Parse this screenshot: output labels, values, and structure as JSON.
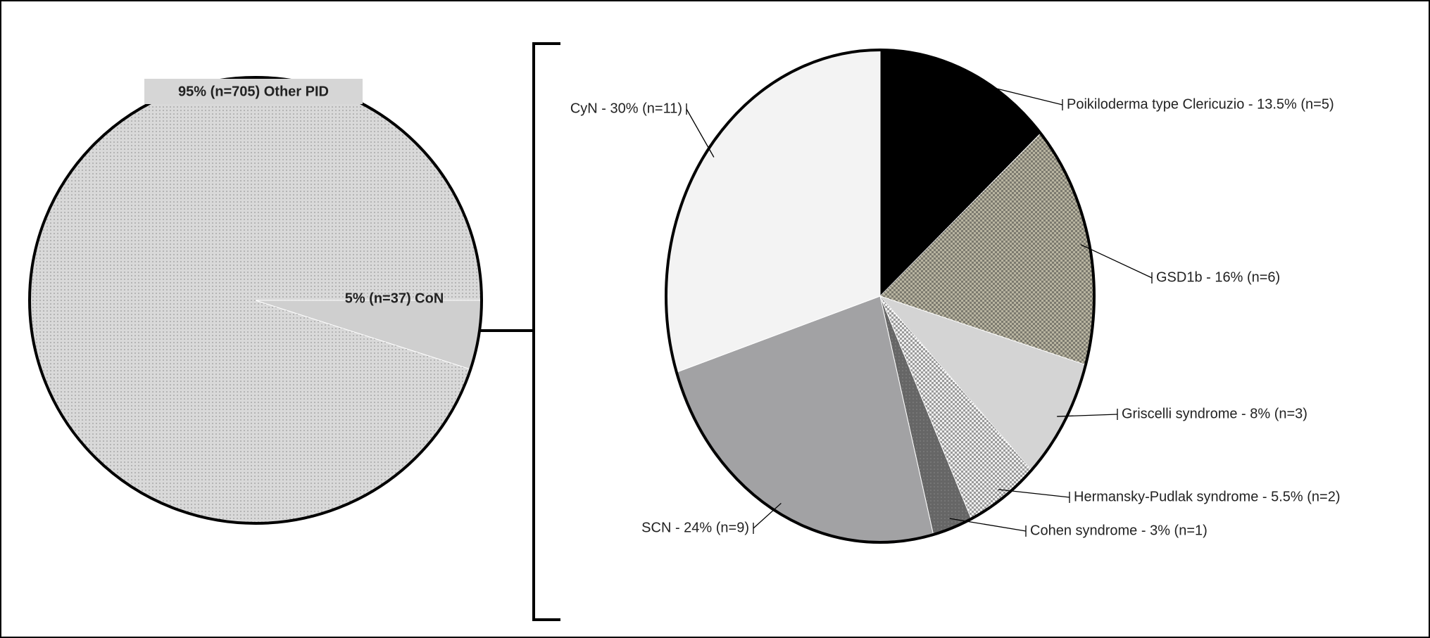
{
  "chart_data": [
    {
      "type": "pie",
      "labels": [
        "95% (n=705) Other PID",
        "5% (n=37) CoN"
      ],
      "values": [
        95,
        5
      ],
      "colors": [
        "#d9d9d9",
        "#cfcfcf"
      ]
    },
    {
      "type": "pie",
      "labels": [
        "Poikiloderma type Clericuzio - 13.5% (n=5)",
        "GSD1b - 16% (n=6)",
        "Griscelli syndrome - 8% (n=3)",
        "Hermansky-Pudlak syndrome - 5.5% (n=2)",
        "Cohen syndrome - 3% (n=1)",
        "SCN - 24% (n=9)",
        "CyN - 30% (n=11)"
      ],
      "values": [
        13.5,
        16,
        8,
        5.5,
        3,
        24,
        30
      ],
      "colors": [
        "#000000",
        "#b8b4a0",
        "#d4d4d4",
        "#eeeeee",
        "#666666",
        "#a2a2a4",
        "#f3f3f3"
      ]
    }
  ]
}
